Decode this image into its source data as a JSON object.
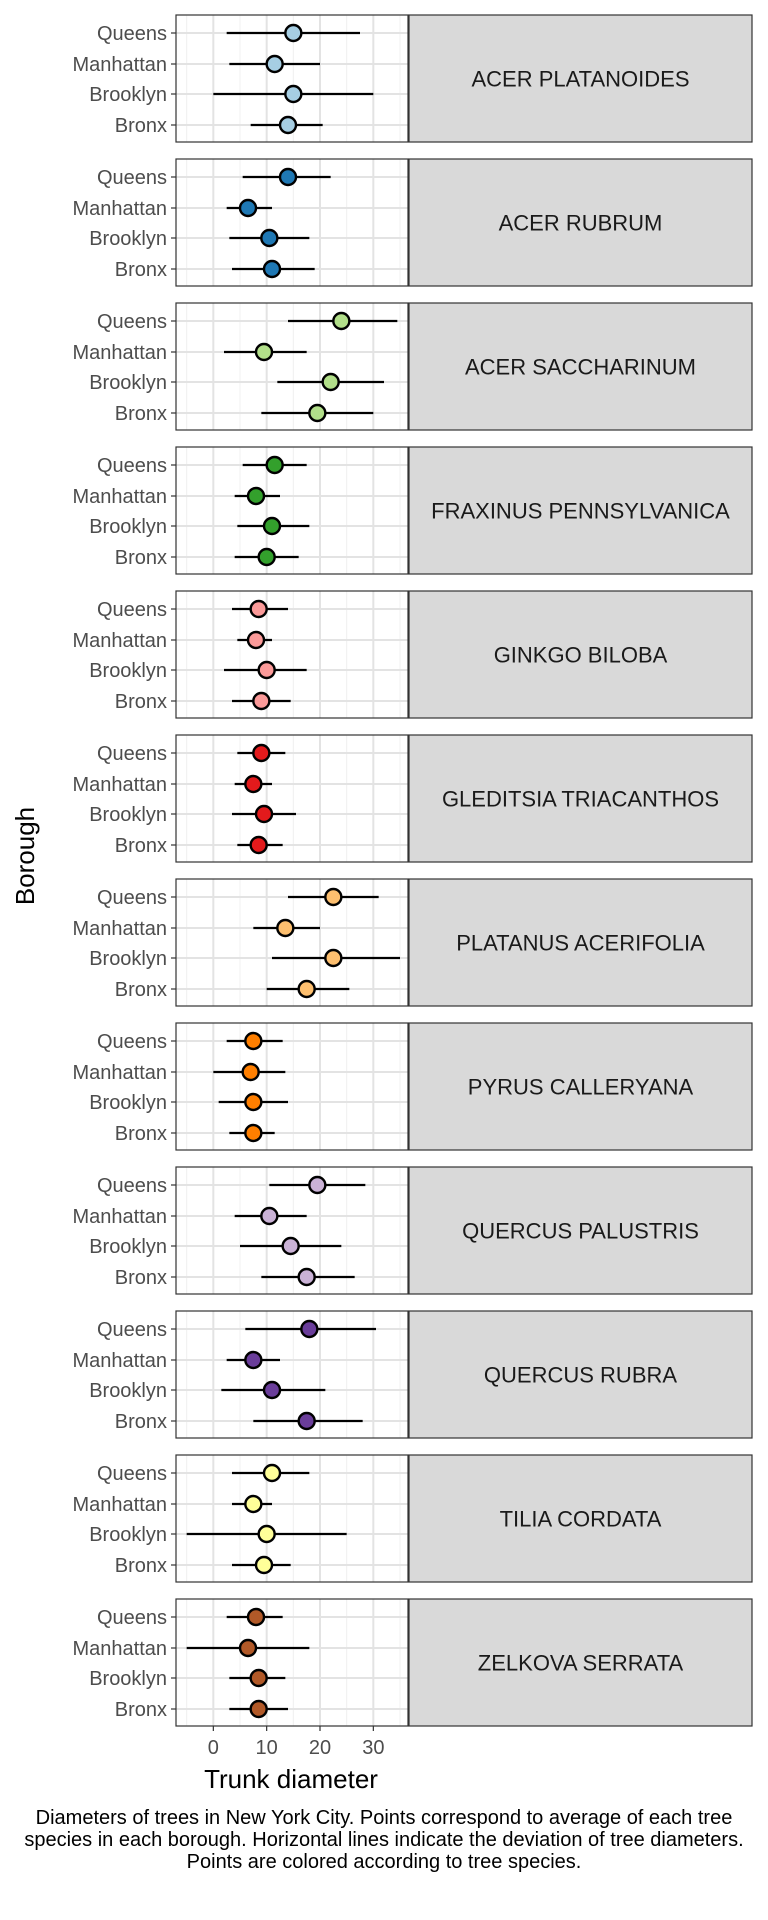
{
  "chart_data": {
    "type": "scatter",
    "xlabel": "Trunk diameter",
    "ylabel": "Borough",
    "xlim": [
      -7,
      36.5
    ],
    "x_ticks": [
      0,
      10,
      20,
      30
    ],
    "boroughs": [
      "Queens",
      "Manhattan",
      "Brooklyn",
      "Bronx"
    ],
    "grid": true,
    "legend": "none",
    "caption": "Diameters of trees in New York City. Points correspond to average of each tree species in each borough. Horizontal lines indicate the deviation of tree diameters. Points are colored according to tree species.",
    "panels": [
      {
        "species": "ACER PLATANOIDES",
        "color": "#a6cee3",
        "points": [
          {
            "borough": "Queens",
            "mean": 15,
            "low": 2.5,
            "high": 27.5
          },
          {
            "borough": "Manhattan",
            "mean": 11.5,
            "low": 3,
            "high": 20
          },
          {
            "borough": "Brooklyn",
            "mean": 15,
            "low": 0,
            "high": 30
          },
          {
            "borough": "Bronx",
            "mean": 14,
            "low": 7,
            "high": 20.5
          }
        ]
      },
      {
        "species": "ACER RUBRUM",
        "color": "#1f78b4",
        "points": [
          {
            "borough": "Queens",
            "mean": 14,
            "low": 5.5,
            "high": 22
          },
          {
            "borough": "Manhattan",
            "mean": 6.5,
            "low": 2.5,
            "high": 11
          },
          {
            "borough": "Brooklyn",
            "mean": 10.5,
            "low": 3,
            "high": 18
          },
          {
            "borough": "Bronx",
            "mean": 11,
            "low": 3.5,
            "high": 19
          }
        ]
      },
      {
        "species": "ACER SACCHARINUM",
        "color": "#b2df8a",
        "points": [
          {
            "borough": "Queens",
            "mean": 24,
            "low": 14,
            "high": 34.5
          },
          {
            "borough": "Manhattan",
            "mean": 9.5,
            "low": 2,
            "high": 17.5
          },
          {
            "borough": "Brooklyn",
            "mean": 22,
            "low": 12,
            "high": 32
          },
          {
            "borough": "Bronx",
            "mean": 19.5,
            "low": 9,
            "high": 30
          }
        ]
      },
      {
        "species": "FRAXINUS PENNSYLVANICA",
        "color": "#33a02c",
        "points": [
          {
            "borough": "Queens",
            "mean": 11.5,
            "low": 5.5,
            "high": 17.5
          },
          {
            "borough": "Manhattan",
            "mean": 8,
            "low": 4,
            "high": 12.5
          },
          {
            "borough": "Brooklyn",
            "mean": 11,
            "low": 4.5,
            "high": 18
          },
          {
            "borough": "Bronx",
            "mean": 10,
            "low": 4,
            "high": 16
          }
        ]
      },
      {
        "species": "GINKGO BILOBA",
        "color": "#fb9a99",
        "points": [
          {
            "borough": "Queens",
            "mean": 8.5,
            "low": 3.5,
            "high": 14
          },
          {
            "borough": "Manhattan",
            "mean": 8,
            "low": 4.5,
            "high": 11
          },
          {
            "borough": "Brooklyn",
            "mean": 10,
            "low": 2,
            "high": 17.5
          },
          {
            "borough": "Bronx",
            "mean": 9,
            "low": 3.5,
            "high": 14.5
          }
        ]
      },
      {
        "species": "GLEDITSIA TRIACANTHOS",
        "color": "#e31a1c",
        "points": [
          {
            "borough": "Queens",
            "mean": 9,
            "low": 4.5,
            "high": 13.5
          },
          {
            "borough": "Manhattan",
            "mean": 7.5,
            "low": 4,
            "high": 11
          },
          {
            "borough": "Brooklyn",
            "mean": 9.5,
            "low": 3.5,
            "high": 15.5
          },
          {
            "borough": "Bronx",
            "mean": 8.5,
            "low": 4.5,
            "high": 13
          }
        ]
      },
      {
        "species": "PLATANUS ACERIFOLIA",
        "color": "#fdbf6f",
        "points": [
          {
            "borough": "Queens",
            "mean": 22.5,
            "low": 14,
            "high": 31
          },
          {
            "borough": "Manhattan",
            "mean": 13.5,
            "low": 7.5,
            "high": 20
          },
          {
            "borough": "Brooklyn",
            "mean": 22.5,
            "low": 11,
            "high": 35
          },
          {
            "borough": "Bronx",
            "mean": 17.5,
            "low": 10,
            "high": 25.5
          }
        ]
      },
      {
        "species": "PYRUS CALLERYANA",
        "color": "#ff7f00",
        "points": [
          {
            "borough": "Queens",
            "mean": 7.5,
            "low": 2.5,
            "high": 13
          },
          {
            "borough": "Manhattan",
            "mean": 7,
            "low": 0,
            "high": 13.5
          },
          {
            "borough": "Brooklyn",
            "mean": 7.5,
            "low": 1,
            "high": 14
          },
          {
            "borough": "Bronx",
            "mean": 7.5,
            "low": 3,
            "high": 11.5
          }
        ]
      },
      {
        "species": "QUERCUS PALUSTRIS",
        "color": "#cab2d6",
        "points": [
          {
            "borough": "Queens",
            "mean": 19.5,
            "low": 10.5,
            "high": 28.5
          },
          {
            "borough": "Manhattan",
            "mean": 10.5,
            "low": 4,
            "high": 17.5
          },
          {
            "borough": "Brooklyn",
            "mean": 14.5,
            "low": 5,
            "high": 24
          },
          {
            "borough": "Bronx",
            "mean": 17.5,
            "low": 9,
            "high": 26.5
          }
        ]
      },
      {
        "species": "QUERCUS RUBRA",
        "color": "#6a3d9a",
        "points": [
          {
            "borough": "Queens",
            "mean": 18,
            "low": 6,
            "high": 30.5
          },
          {
            "borough": "Manhattan",
            "mean": 7.5,
            "low": 2.5,
            "high": 12.5
          },
          {
            "borough": "Brooklyn",
            "mean": 11,
            "low": 1.5,
            "high": 21
          },
          {
            "borough": "Bronx",
            "mean": 17.5,
            "low": 7.5,
            "high": 28
          }
        ]
      },
      {
        "species": "TILIA CORDATA",
        "color": "#ffff99",
        "points": [
          {
            "borough": "Queens",
            "mean": 11,
            "low": 3.5,
            "high": 18
          },
          {
            "borough": "Manhattan",
            "mean": 7.5,
            "low": 3.5,
            "high": 11
          },
          {
            "borough": "Brooklyn",
            "mean": 10,
            "low": -5,
            "high": 25
          },
          {
            "borough": "Bronx",
            "mean": 9.5,
            "low": 3.5,
            "high": 14.5
          }
        ]
      },
      {
        "species": "ZELKOVA SERRATA",
        "color": "#b15928",
        "points": [
          {
            "borough": "Queens",
            "mean": 8,
            "low": 2.5,
            "high": 13
          },
          {
            "borough": "Manhattan",
            "mean": 6.5,
            "low": -5,
            "high": 18
          },
          {
            "borough": "Brooklyn",
            "mean": 8.5,
            "low": 3,
            "high": 13.5
          },
          {
            "borough": "Bronx",
            "mean": 8.5,
            "low": 3,
            "high": 14
          }
        ]
      }
    ]
  }
}
